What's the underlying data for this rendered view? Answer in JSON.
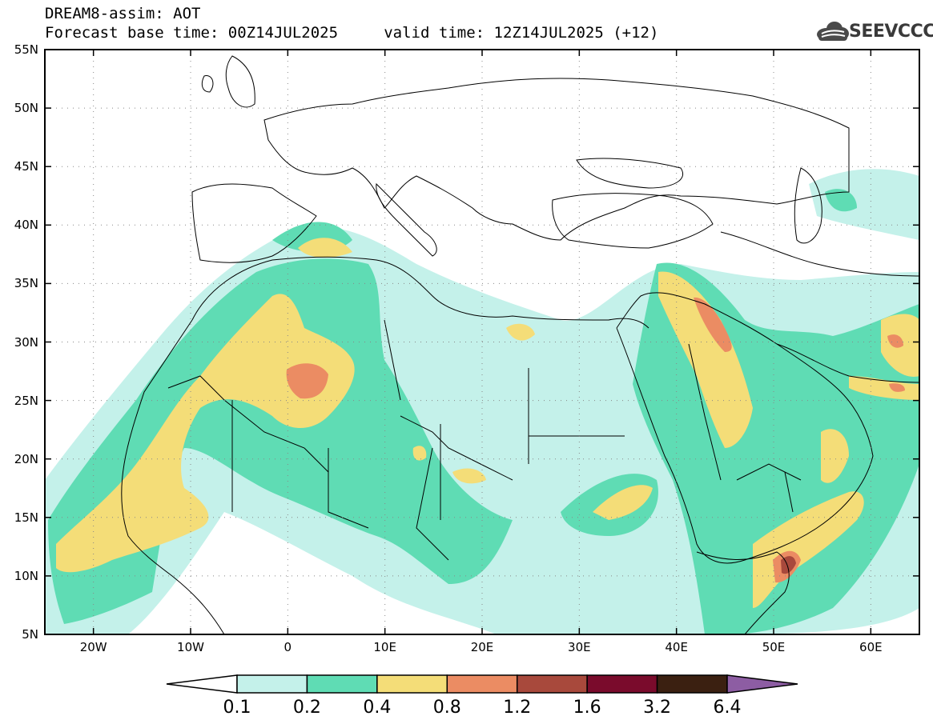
{
  "header": {
    "title": "DREAM8-assim: AOT",
    "subtitle": "Forecast base time: 00Z14JUL2025     valid time: 12Z14JUL2025 (+12)",
    "logo_text": "SEEVCCC",
    "logo_icon": "cloud-logo-icon"
  },
  "map": {
    "lon_range": [
      -25,
      65
    ],
    "lat_range": [
      5,
      55
    ],
    "lat_ticks": [
      "55N",
      "50N",
      "45N",
      "40N",
      "35N",
      "30N",
      "25N",
      "20N",
      "15N",
      "10N",
      "5N"
    ],
    "lon_ticks": [
      "20W",
      "10W",
      "0",
      "10E",
      "20E",
      "30E",
      "40E",
      "50E",
      "60E"
    ],
    "grid": "dotted",
    "grid_lats": [
      10,
      15,
      20,
      25,
      30,
      35,
      40,
      45,
      50
    ],
    "grid_lons": [
      -20,
      -10,
      0,
      10,
      20,
      30,
      40,
      50,
      60
    ]
  },
  "colorbar": {
    "labels": [
      "0.1",
      "0.2",
      "0.4",
      "0.8",
      "1.2",
      "1.6",
      "3.2",
      "6.4"
    ],
    "thresholds": [
      0.1,
      0.2,
      0.4,
      0.8,
      1.2,
      1.6,
      3.2,
      6.4
    ],
    "colors": [
      "#ffffff",
      "#c4f1ea",
      "#5fdcb4",
      "#f4dd78",
      "#eb8c63",
      "#a8493c",
      "#7a0b2c",
      "#3b2011",
      "#8d5da3"
    ]
  }
}
